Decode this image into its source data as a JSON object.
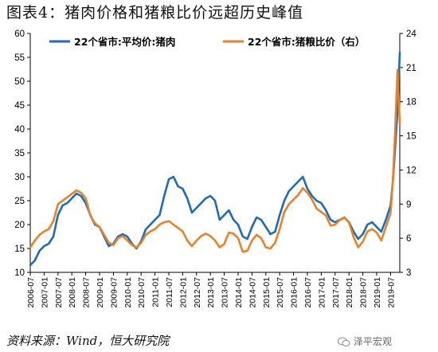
{
  "figure": {
    "title": "图表4：猪肉价格和猪粮比价远超历史峰值",
    "source": "资料来源：Wind，恒大研究院",
    "watermark": "泽平宏观",
    "watermark_icon": "wechat-icon"
  },
  "chart_data": {
    "type": "line",
    "title": "",
    "y_left": {
      "lim": [
        10,
        60
      ],
      "ticks": [
        10,
        15,
        20,
        25,
        30,
        35,
        40,
        45,
        50,
        55,
        60
      ]
    },
    "y_right": {
      "lim": [
        3,
        24
      ],
      "ticks": [
        3,
        6,
        9,
        12,
        15,
        18,
        21,
        24
      ]
    },
    "x_ticks": [
      "2006-07",
      "2007-01",
      "2007-07",
      "2008-01",
      "2008-07",
      "2009-01",
      "2009-07",
      "2010-01",
      "2010-07",
      "2011-01",
      "2011-07",
      "2012-01",
      "2012-07",
      "2013-01",
      "2013-07",
      "2014-01",
      "2014-07",
      "2015-01",
      "2015-07",
      "2016-01",
      "2016-07",
      "2017-01",
      "2017-07",
      "2018-01",
      "2018-07",
      "2019-01",
      "2019-07"
    ],
    "x_range": [
      "2006-07",
      "2019-11"
    ],
    "grid": false,
    "legend_position": "top",
    "series": [
      {
        "name": "22个省市:平均价:猪肉",
        "axis": "left",
        "color": "#1f6bb5",
        "x": [
          "2006-07",
          "2006-09",
          "2006-11",
          "2007-01",
          "2007-03",
          "2007-05",
          "2007-07",
          "2007-09",
          "2007-11",
          "2008-01",
          "2008-03",
          "2008-05",
          "2008-07",
          "2008-09",
          "2008-11",
          "2009-01",
          "2009-03",
          "2009-05",
          "2009-07",
          "2009-09",
          "2009-11",
          "2010-01",
          "2010-03",
          "2010-05",
          "2010-07",
          "2010-09",
          "2010-11",
          "2011-01",
          "2011-03",
          "2011-05",
          "2011-07",
          "2011-09",
          "2011-11",
          "2012-01",
          "2012-03",
          "2012-05",
          "2012-07",
          "2012-09",
          "2012-11",
          "2013-01",
          "2013-03",
          "2013-05",
          "2013-07",
          "2013-09",
          "2013-11",
          "2014-01",
          "2014-03",
          "2014-05",
          "2014-07",
          "2014-09",
          "2014-11",
          "2015-01",
          "2015-03",
          "2015-05",
          "2015-07",
          "2015-09",
          "2015-11",
          "2016-01",
          "2016-03",
          "2016-05",
          "2016-07",
          "2016-09",
          "2016-11",
          "2017-01",
          "2017-03",
          "2017-05",
          "2017-07",
          "2017-09",
          "2017-11",
          "2018-01",
          "2018-03",
          "2018-05",
          "2018-07",
          "2018-09",
          "2018-11",
          "2019-01",
          "2019-03",
          "2019-05",
          "2019-07",
          "2019-08",
          "2019-09",
          "2019-10",
          "2019-11"
        ],
        "y": [
          11.5,
          12.5,
          14.5,
          15.5,
          16,
          17.5,
          22,
          24,
          24.5,
          25.5,
          26.5,
          26,
          24.5,
          22,
          20,
          19.5,
          17.5,
          15.5,
          16,
          17.5,
          18,
          17.5,
          16,
          15,
          16.5,
          19,
          20,
          21,
          22,
          26,
          29.5,
          30,
          28,
          27.5,
          25.5,
          22.5,
          23.5,
          24.5,
          25.5,
          26,
          25,
          21,
          22,
          23,
          21,
          20,
          17.5,
          17,
          19.5,
          21.5,
          21,
          19.5,
          18,
          18.5,
          22,
          25,
          27,
          28,
          29,
          30,
          27.5,
          26,
          25,
          24.5,
          23,
          21,
          20.5,
          21,
          21.5,
          20.5,
          18.5,
          17,
          18,
          20,
          20.5,
          19.5,
          18.5,
          21,
          24,
          29,
          36,
          44,
          56
        ]
      },
      {
        "name": "22个省市:猪粮比价（右）",
        "axis": "right",
        "color": "#e8822a",
        "x": [
          "2006-07",
          "2006-09",
          "2006-11",
          "2007-01",
          "2007-03",
          "2007-05",
          "2007-07",
          "2007-09",
          "2007-11",
          "2008-01",
          "2008-03",
          "2008-05",
          "2008-07",
          "2008-09",
          "2008-11",
          "2009-01",
          "2009-03",
          "2009-05",
          "2009-07",
          "2009-09",
          "2009-11",
          "2010-01",
          "2010-03",
          "2010-05",
          "2010-07",
          "2010-09",
          "2010-11",
          "2011-01",
          "2011-03",
          "2011-05",
          "2011-07",
          "2011-09",
          "2011-11",
          "2012-01",
          "2012-03",
          "2012-05",
          "2012-07",
          "2012-09",
          "2012-11",
          "2013-01",
          "2013-03",
          "2013-05",
          "2013-07",
          "2013-09",
          "2013-11",
          "2014-01",
          "2014-03",
          "2014-05",
          "2014-07",
          "2014-09",
          "2014-11",
          "2015-01",
          "2015-03",
          "2015-05",
          "2015-07",
          "2015-09",
          "2015-11",
          "2016-01",
          "2016-03",
          "2016-05",
          "2016-07",
          "2016-09",
          "2016-11",
          "2017-01",
          "2017-03",
          "2017-05",
          "2017-07",
          "2017-09",
          "2017-11",
          "2018-01",
          "2018-03",
          "2018-05",
          "2018-07",
          "2018-09",
          "2018-11",
          "2019-01",
          "2019-03",
          "2019-05",
          "2019-07",
          "2019-08",
          "2019-09",
          "2019-10",
          "2019-11"
        ],
        "y": [
          5.2,
          5.8,
          6.3,
          6.6,
          6.8,
          7.5,
          9.0,
          9.3,
          9.6,
          9.9,
          10.2,
          10.0,
          9.5,
          8.0,
          7.3,
          7.0,
          6.3,
          5.6,
          5.4,
          6.0,
          6.2,
          5.8,
          5.4,
          5.2,
          5.6,
          6.3,
          6.6,
          6.8,
          7.2,
          7.4,
          7.5,
          7.2,
          6.9,
          6.6,
          5.8,
          5.3,
          5.8,
          6.2,
          6.4,
          6.2,
          5.8,
          5.2,
          5.5,
          6.5,
          6.4,
          6.0,
          4.8,
          4.9,
          5.8,
          6.3,
          6.0,
          5.2,
          5.1,
          5.6,
          6.8,
          8.3,
          9.0,
          9.4,
          9.8,
          10.4,
          10.0,
          9.4,
          8.6,
          8.3,
          8.0,
          7.1,
          7.2,
          7.6,
          7.8,
          7.4,
          6.1,
          5.2,
          5.7,
          6.6,
          6.8,
          6.5,
          5.8,
          7.0,
          8.2,
          11.0,
          15.5,
          20.8,
          16.0
        ]
      }
    ]
  }
}
